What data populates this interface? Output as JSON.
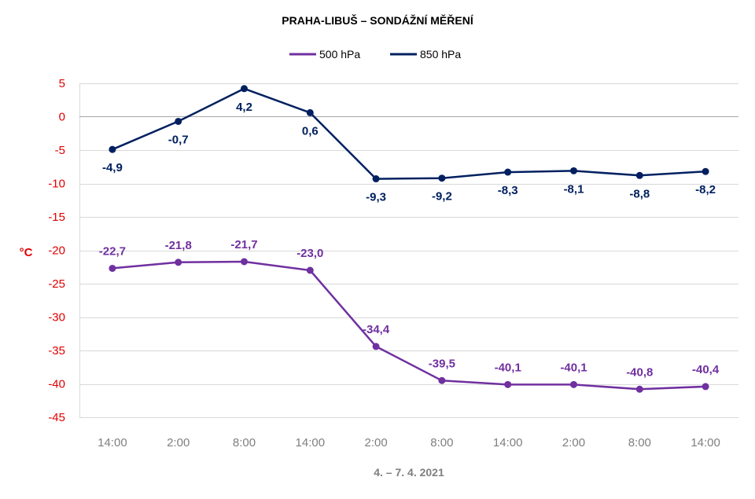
{
  "chart_data": {
    "type": "line",
    "title": "PRAHA-LIBUŠ – SONDÁŽNÍ MĚŘENÍ",
    "xlabel": "4. – 7. 4. 2021",
    "ylabel": "°C",
    "categories": [
      "14:00",
      "2:00",
      "8:00",
      "14:00",
      "2:00",
      "8:00",
      "14:00",
      "2:00",
      "8:00",
      "14:00"
    ],
    "ylim": [
      -45,
      5
    ],
    "yticks": [
      5,
      0,
      -5,
      -10,
      -15,
      -20,
      -25,
      -30,
      -35,
      -40,
      -45
    ],
    "grid": true,
    "legend_position": "top",
    "series": [
      {
        "name": "500 hPa",
        "color": "#7030a0",
        "values": [
          -22.7,
          -21.8,
          -21.7,
          -23.0,
          -34.4,
          -39.5,
          -40.1,
          -40.1,
          -40.8,
          -40.4
        ],
        "labels": [
          "-22,7",
          "-21,8",
          "-21,7",
          "-23,0",
          "-34,4",
          "-39,5",
          "-40,1",
          "-40,1",
          "-40,8",
          "-40,4"
        ],
        "label_position": "above"
      },
      {
        "name": "850 hPa",
        "color": "#002060",
        "values": [
          -4.9,
          -0.7,
          4.2,
          0.6,
          -9.3,
          -9.2,
          -8.3,
          -8.1,
          -8.8,
          -8.2
        ],
        "labels": [
          "-4,9",
          "-0,7",
          "4,2",
          "0,6",
          "-9,3",
          "-9,2",
          "-8,3",
          "-8,1",
          "-8,8",
          "-8,2"
        ],
        "label_position": "below"
      }
    ]
  }
}
